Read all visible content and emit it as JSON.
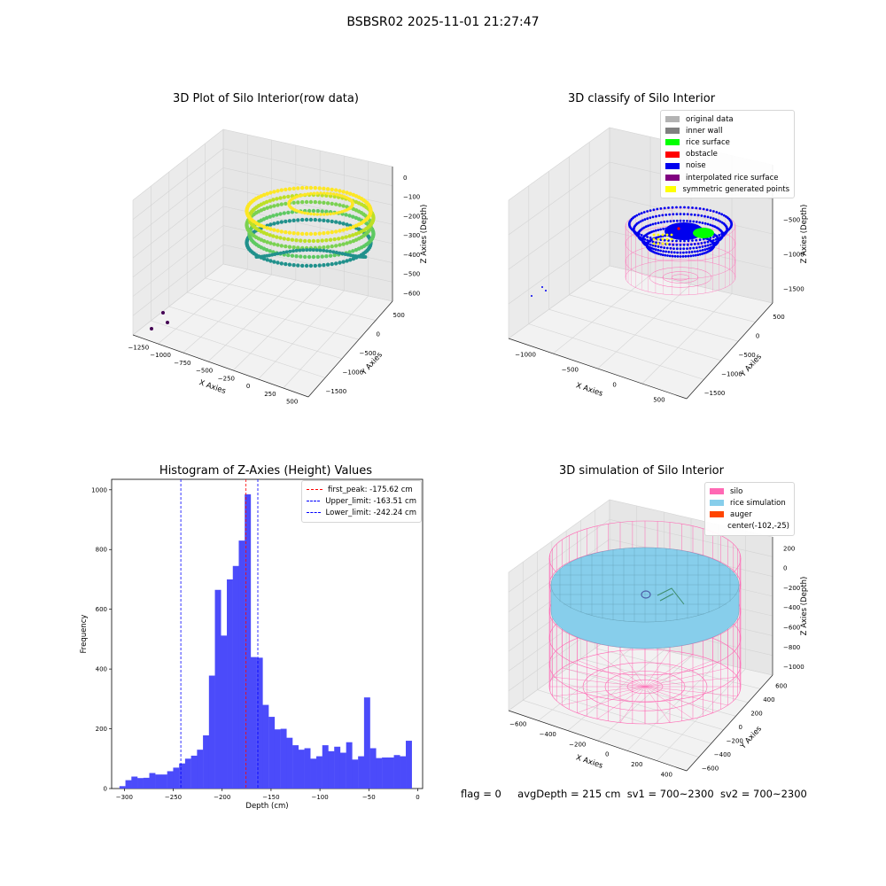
{
  "figure": {
    "suptitle": "BSBSR02 2025-11-01 21:27:47",
    "footer": {
      "flag": "flag = 0",
      "avgDepth": "avgDepth = 215 cm",
      "sv1": "sv1 = 700~2300",
      "sv2": "sv2 = 700~2300"
    }
  },
  "chart_data": [
    {
      "type": "scatter3d",
      "title": "3D Plot of Silo Interior(row data)",
      "xlabel": "X Axies",
      "ylabel": "Y Axies",
      "zlabel": "Z Axies (Depth)",
      "xticks": [
        "−1250",
        "−1000",
        "−750",
        "−500",
        "−250",
        "0",
        "250",
        "500"
      ],
      "yticks": [
        "500",
        "0",
        "−500",
        "−1000",
        "−1500"
      ],
      "zticks": [
        "0",
        "−100",
        "−200",
        "−300",
        "−400",
        "−500",
        "−600"
      ],
      "colormap": [
        "#440154",
        "#21918c",
        "#5ec962",
        "#fde725"
      ]
    },
    {
      "type": "scatter3d",
      "title": "3D classify of Silo Interior",
      "xlabel": "X Axies",
      "ylabel": "Y Axies",
      "zlabel": "Z Axies (Depth)",
      "xticks": [
        "−1000",
        "−500",
        "0",
        "500"
      ],
      "yticks": [
        "500",
        "0",
        "−500",
        "−1000",
        "−1500"
      ],
      "zticks": [
        "0",
        "−500",
        "−1000",
        "−1500"
      ],
      "legend_position": "upper right",
      "legend": [
        {
          "label": "original data",
          "color": "#b3b3b3"
        },
        {
          "label": "inner wall",
          "color": "#808080"
        },
        {
          "label": "rice surface",
          "color": "#00ff00"
        },
        {
          "label": "obstacle",
          "color": "#ff0000"
        },
        {
          "label": "noise",
          "color": "#0000ee"
        },
        {
          "label": "interpolated rice surface",
          "color": "#800080"
        },
        {
          "label": "symmetric generated points",
          "color": "#ffff00"
        }
      ]
    },
    {
      "type": "bar",
      "title": "Histogram of Z-Axies (Height) Values",
      "xlabel": "Depth (cm)",
      "ylabel": "Frequency",
      "xlim": [
        -313,
        5
      ],
      "ylim": [
        0,
        1035
      ],
      "bar_color": "#4b4bfa",
      "xticks": [
        -300,
        -250,
        -200,
        -150,
        -100,
        -50,
        0
      ],
      "yticks": [
        0,
        200,
        400,
        600,
        800,
        1000
      ],
      "bin_start": -305,
      "bin_width": 6.1,
      "values": [
        8,
        28,
        40,
        35,
        36,
        52,
        47,
        47,
        58,
        70,
        84,
        100,
        110,
        130,
        178,
        378,
        665,
        512,
        700,
        745,
        830,
        985,
        440,
        438,
        280,
        240,
        198,
        200,
        170,
        145,
        130,
        135,
        100,
        108,
        145,
        125,
        140,
        120,
        155,
        97,
        108,
        305,
        135,
        102,
        104,
        104,
        112,
        108,
        160
      ],
      "vlines": [
        {
          "label": "first_peak: -175.62 cm",
          "x": -175.62,
          "color": "#ff0000"
        },
        {
          "label": "Upper_limit: -163.51 cm",
          "x": -163.51,
          "color": "#0000ff"
        },
        {
          "label": "Lower_limit: -242.24 cm",
          "x": -242.24,
          "color": "#0000ff"
        }
      ],
      "legend_position": "upper right"
    },
    {
      "type": "surface3d",
      "title": "3D simulation of Silo Interior",
      "xlabel": "X Axies",
      "ylabel": "Y Axies",
      "zlabel": "Z Axies (Depth)",
      "xticks": [
        "−600",
        "−400",
        "−200",
        "0",
        "200",
        "400"
      ],
      "yticks": [
        "600",
        "400",
        "200",
        "0",
        "−200",
        "−400",
        "−600"
      ],
      "zticks": [
        "200",
        "0",
        "−200",
        "−400",
        "−600",
        "−800",
        "−1000"
      ],
      "legend_position": "upper right",
      "legend": [
        {
          "label": "silo",
          "color": "#ff69b4"
        },
        {
          "label": "rice simulation",
          "color": "#87ceeb"
        },
        {
          "label": "auger",
          "color": "#ff4500"
        },
        {
          "label": "center(-102,-25)",
          "color": ""
        }
      ]
    }
  ]
}
